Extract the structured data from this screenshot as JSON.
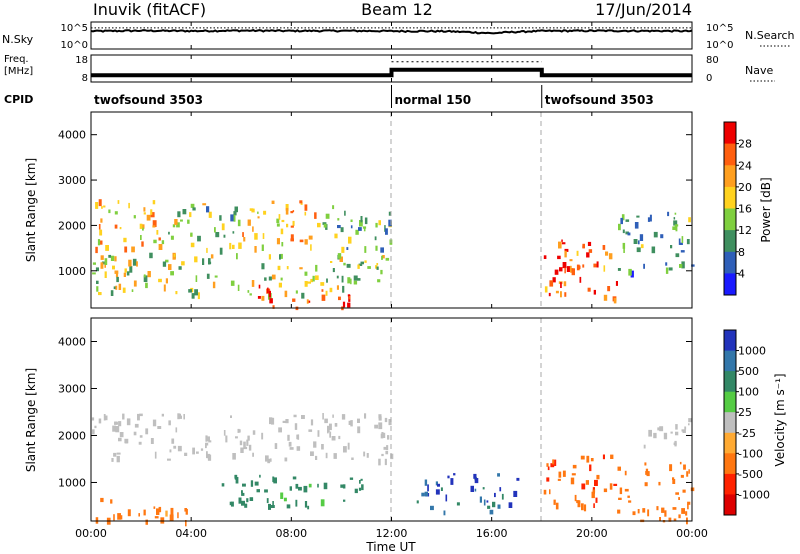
{
  "header": {
    "station": "Inuvik (fitACF)",
    "beam": "Beam 12",
    "date": "17/Jun/2014"
  },
  "noise_panel": {
    "left_label": "N.Sky",
    "right_label": "N.Search",
    "left_ticks": [
      "10^5",
      "10^0"
    ],
    "right_ticks": [
      "10^5",
      "10^0"
    ]
  },
  "freq_panel": {
    "left_label_line1": "Freq.",
    "left_label_line2": "[MHz]",
    "right_label": "Nave",
    "left_ticks": [
      "18",
      "8"
    ],
    "right_ticks": [
      "80",
      "0"
    ]
  },
  "cpid": {
    "label": "CPID",
    "segments": [
      {
        "name": "twofsound 3503",
        "start_h": 0,
        "end_h": 12
      },
      {
        "name": "normal 150",
        "start_h": 12,
        "end_h": 18
      },
      {
        "name": "twofsound 3503",
        "start_h": 18,
        "end_h": 24
      }
    ]
  },
  "power_panel": {
    "ylabel": "Slant Range [km]",
    "yticks": [
      "4000",
      "3000",
      "2000",
      "1000"
    ],
    "colorbar_label": "Power [dB]",
    "colorbar_ticks": [
      "28",
      "24",
      "20",
      "16",
      "12",
      "8",
      "4"
    ],
    "colors": [
      "#1a1aff",
      "#2f5fb8",
      "#3f8f5f",
      "#7fcf3f",
      "#ffd21f",
      "#ff9f1f",
      "#ff5f0f",
      "#ee0000"
    ]
  },
  "velocity_panel": {
    "ylabel": "Slant Range [km]",
    "yticks": [
      "4000",
      "3000",
      "2000",
      "1000"
    ],
    "colorbar_label": "Velocity [m s⁻¹]",
    "colorbar_ticks": [
      "1000",
      "500",
      "100",
      "25",
      "-25",
      "-100",
      "-500",
      "-1000"
    ],
    "colors": [
      "#2233bb",
      "#3377aa",
      "#338866",
      "#55cc44",
      "#bfbfbf",
      "#ffaa33",
      "#ff7711",
      "#ff2200",
      "#dd0000"
    ]
  },
  "xaxis": {
    "label": "Time UT",
    "ticks": [
      "00:00",
      "04:00",
      "08:00",
      "12:00",
      "16:00",
      "20:00",
      "00:00"
    ]
  },
  "chart_data": [
    {
      "type": "line",
      "title": "Inuvik (fitACF) Beam 12 17/Jun/2014",
      "xlabel": "",
      "ylabel": "N.Sky",
      "x_range_h": [
        0,
        24
      ],
      "series": [
        {
          "name": "N.Sky",
          "x": [
            0,
            2,
            4,
            6,
            8,
            10,
            12,
            14,
            16,
            17,
            18,
            20,
            22,
            24
          ],
          "values": [
            2000,
            2500,
            2200,
            2600,
            2300,
            2400,
            2100,
            2000,
            800,
            1500,
            2200,
            2400,
            2300,
            2100
          ]
        },
        {
          "name": "N.Search",
          "x": [
            0,
            24
          ],
          "values": [
            8000,
            8000
          ]
        }
      ]
    },
    {
      "type": "line",
      "xlabel": "",
      "ylabel": "Freq. [MHz]",
      "x_range_h": [
        0,
        24
      ],
      "series": [
        {
          "name": "Freq",
          "x": [
            0,
            12,
            12,
            18,
            18,
            24
          ],
          "values": [
            10.5,
            10.5,
            12.5,
            12.5,
            10.5,
            10.5
          ]
        },
        {
          "name": "Nave",
          "x": [
            12,
            18
          ],
          "values": [
            60,
            60
          ]
        }
      ]
    },
    {
      "type": "heatmap",
      "xlabel": "",
      "ylabel": "Slant Range [km]",
      "x_range_h": [
        0,
        24
      ],
      "ylim": [
        180,
        4500
      ],
      "colorbar": {
        "label": "Power [dB]",
        "range": [
          0,
          32
        ]
      },
      "regions": [
        {
          "t": [
            0,
            3
          ],
          "r": [
            1500,
            2600
          ],
          "val": 20
        },
        {
          "t": [
            3,
            6
          ],
          "r": [
            1500,
            2500
          ],
          "val": 14
        },
        {
          "t": [
            6,
            9
          ],
          "r": [
            1500,
            2600
          ],
          "val": 22
        },
        {
          "t": [
            9,
            12
          ],
          "r": [
            1500,
            2500
          ],
          "val": 12
        },
        {
          "t": [
            0,
            12
          ],
          "r": [
            500,
            1400
          ],
          "val": 16
        },
        {
          "t": [
            6.5,
            10.5
          ],
          "r": [
            200,
            700
          ],
          "val": 27
        },
        {
          "t": [
            18,
            21
          ],
          "r": [
            400,
            1800
          ],
          "val": 26
        },
        {
          "t": [
            21,
            24
          ],
          "r": [
            1000,
            2300
          ],
          "val": 10
        }
      ]
    },
    {
      "type": "heatmap",
      "xlabel": "Time UT",
      "ylabel": "Slant Range [km]",
      "x_range_h": [
        0,
        24
      ],
      "ylim": [
        180,
        4500
      ],
      "colorbar": {
        "label": "Velocity [m s⁻¹]",
        "range": [
          -1000,
          1000
        ]
      },
      "regions": [
        {
          "t": [
            0,
            12
          ],
          "r": [
            1500,
            2500
          ],
          "val": 0
        },
        {
          "t": [
            0,
            4
          ],
          "r": [
            200,
            700
          ],
          "val": -200
        },
        {
          "t": [
            5,
            11
          ],
          "r": [
            500,
            1200
          ],
          "val": 200
        },
        {
          "t": [
            13,
            17
          ],
          "r": [
            400,
            1200
          ],
          "val": 800
        },
        {
          "t": [
            18,
            21
          ],
          "r": [
            500,
            1600
          ],
          "val": -400
        },
        {
          "t": [
            21,
            24
          ],
          "r": [
            200,
            1500
          ],
          "val": -300
        },
        {
          "t": [
            22,
            24
          ],
          "r": [
            1700,
            2400
          ],
          "val": 0
        }
      ]
    }
  ]
}
